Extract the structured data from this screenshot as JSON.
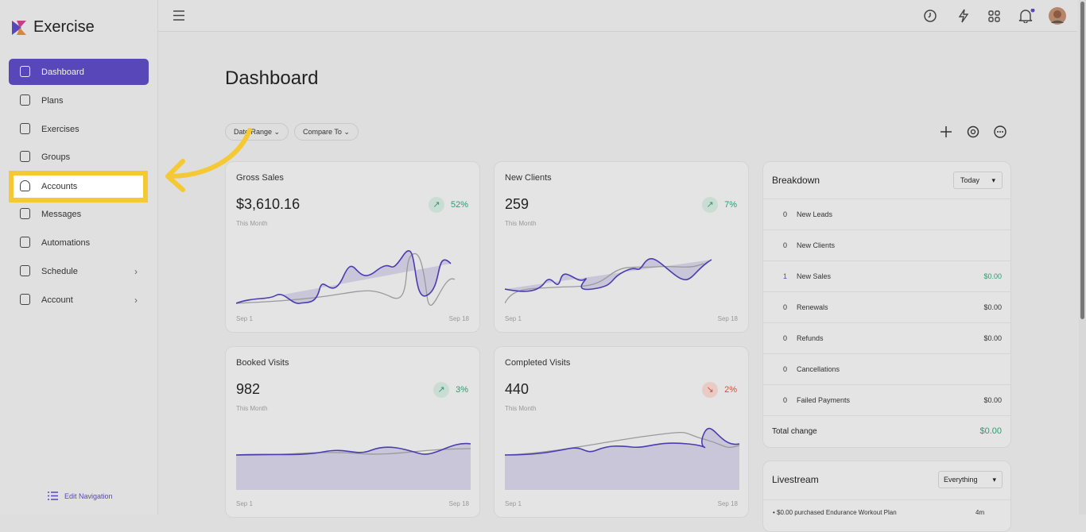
{
  "brand": "Exercise",
  "nav": [
    "Dashboard",
    "Plans",
    "Exercises",
    "Groups",
    "Accounts",
    "Messages",
    "Automations",
    "Schedule",
    "Account"
  ],
  "edit_navigation": "Edit Navigation",
  "page_title": "Dashboard",
  "filters": [
    "Date Range",
    "Compare To"
  ],
  "cards": [
    {
      "title": "Gross Sales",
      "value": "$3,610.16",
      "change": "52%",
      "trend": "up",
      "period": "This Month",
      "start": "Sep 1",
      "end": "Sep 18"
    },
    {
      "title": "New Clients",
      "value": "259",
      "change": "7%",
      "trend": "up",
      "period": "This Month",
      "start": "Sep 1",
      "end": "Sep 18"
    },
    {
      "title": "Booked Visits",
      "value": "982",
      "change": "3%",
      "trend": "up",
      "period": "This Month",
      "start": "Sep 1",
      "end": "Sep 18"
    },
    {
      "title": "Completed Visits",
      "value": "440",
      "change": "2%",
      "trend": "down",
      "period": "This Month",
      "start": "Sep 1",
      "end": "Sep 18"
    }
  ],
  "breakdown": {
    "title": "Breakdown",
    "period": "Today",
    "rows": [
      {
        "count": "0",
        "label": "New Leads"
      },
      {
        "count": "0",
        "label": "New Clients"
      },
      {
        "count": "1",
        "label": "New Sales",
        "amount": "$0.00"
      },
      {
        "count": "0",
        "label": "Renewals",
        "amount": "$0.00"
      },
      {
        "count": "0",
        "label": "Refunds",
        "amount": "$0.00"
      },
      {
        "count": "0",
        "label": "Cancellations"
      },
      {
        "count": "0",
        "label": "Failed Payments",
        "amount": "$0.00"
      }
    ],
    "total_label": "Total change",
    "total_value": "$0.00"
  },
  "livestream": {
    "title": "Livestream",
    "filter": "Everything",
    "items": [
      {
        "text": "$0.00 purchased Endurance Workout Plan",
        "time": "4m"
      }
    ]
  }
}
